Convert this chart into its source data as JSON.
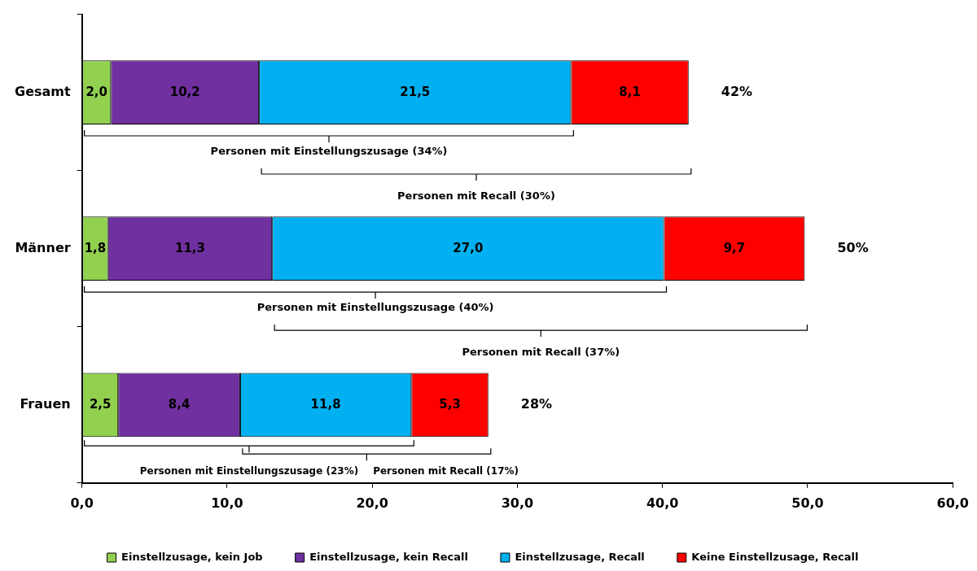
{
  "chart_data": {
    "type": "bar",
    "orientation": "horizontal",
    "stacked": true,
    "categories": [
      "Gesamt",
      "Männer",
      "Frauen"
    ],
    "series": [
      {
        "name": "Einstellzusage, kein Job",
        "color": "#92d050",
        "values": [
          2.0,
          1.8,
          2.5
        ],
        "value_labels": [
          "2,0",
          "1,8",
          "2,5"
        ]
      },
      {
        "name": "Einstellzusage, kein Recall",
        "color": "#7030a0",
        "values": [
          10.2,
          11.3,
          8.4
        ],
        "value_labels": [
          "10,2",
          "11,3",
          "8,4"
        ]
      },
      {
        "name": "Einstellzusage, Recall",
        "color": "#00b0f0",
        "values": [
          21.5,
          27.0,
          11.8
        ],
        "value_labels": [
          "21,5",
          "27,0",
          "11,8"
        ]
      },
      {
        "name": "Keine Einstellzusage, Recall",
        "color": "#ff0000",
        "values": [
          8.1,
          9.7,
          5.3
        ],
        "value_labels": [
          "8,1",
          "9,7",
          "5,3"
        ]
      }
    ],
    "totals": [
      "42%",
      "50%",
      "28%"
    ],
    "xlim": [
      0,
      60
    ],
    "xticks": [
      {
        "value": 0,
        "label": "0,0"
      },
      {
        "value": 10,
        "label": "10,0"
      },
      {
        "value": 20,
        "label": "20,0"
      },
      {
        "value": 30,
        "label": "30,0"
      },
      {
        "value": 40,
        "label": "40,0"
      },
      {
        "value": 50,
        "label": "50,0"
      },
      {
        "value": 60,
        "label": "60,0"
      }
    ],
    "grid": false,
    "legend": "bottom",
    "annotations": [
      "Personen mit Einstellungszusage (34%)",
      "Personen mit Recall (30%)",
      "Personen mit Einstellungszusage (40%)",
      "Personen mit Recall (37%)",
      "Personen mit Einstellungszusage (23%)",
      "Personen mit Recall (17%)"
    ]
  }
}
